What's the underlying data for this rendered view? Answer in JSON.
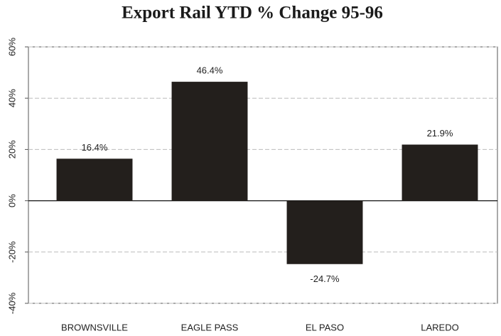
{
  "chart_data": {
    "type": "bar",
    "title": "Export Rail YTD % Change 95-96",
    "categories": [
      "BROWNSVILLE",
      "EAGLE PASS",
      "EL PASO",
      "LAREDO"
    ],
    "values": [
      16.4,
      46.4,
      -24.7,
      21.9
    ],
    "value_labels": [
      "16.4%",
      "46.4%",
      "-24.7%",
      "21.9%"
    ],
    "color": "#231f1c",
    "ylim": [
      -40,
      60
    ],
    "yticks": [
      {
        "value": -40,
        "label": "-40%"
      },
      {
        "value": -20,
        "label": "-20%"
      },
      {
        "value": 0,
        "label": "0%"
      },
      {
        "value": 20,
        "label": "20%"
      },
      {
        "value": 40,
        "label": "40%"
      },
      {
        "value": 60,
        "label": "60%"
      }
    ],
    "grid": true
  }
}
